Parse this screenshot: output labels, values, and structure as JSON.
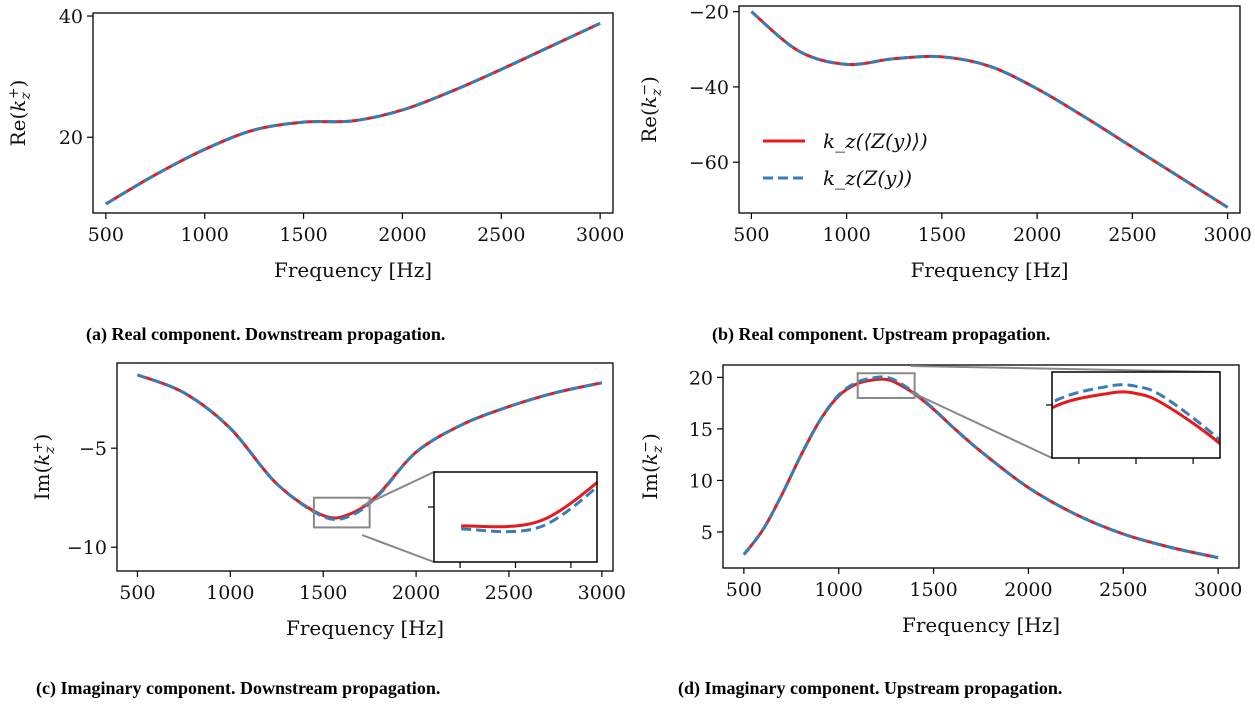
{
  "chart_data": [
    {
      "id": "a",
      "type": "line",
      "caption": "(a) Real component. Downstream propagation.",
      "xlabel": "Frequency [Hz]",
      "ylabel": "Re(kₓ⁺)",
      "ylabel_base": "Re(",
      "ylabel_sym": "k",
      "ylabel_sub": "z",
      "ylabel_sup": "+",
      "ylabel_end": ")",
      "xlim": [
        435,
        3065
      ],
      "ylim": [
        7.5,
        40.5
      ],
      "xticks": [
        500,
        1000,
        1500,
        2000,
        2500,
        3000
      ],
      "xtick_labels": [
        "500",
        "1000",
        "1500",
        "2000",
        "2500",
        "3000"
      ],
      "yticks": [
        20,
        40
      ],
      "ytick_labels": [
        "20",
        "40"
      ],
      "x": [
        500,
        750,
        1000,
        1250,
        1500,
        1750,
        2000,
        2250,
        2500,
        2750,
        3000
      ],
      "series": [
        {
          "name": "k_z(⟨Z(y)⟩)",
          "color": "#e41a1c",
          "style": "solid",
          "values": [
            9,
            13.8,
            18,
            21.2,
            22.5,
            22.7,
            24.5,
            27.6,
            31.2,
            35,
            38.8
          ]
        },
        {
          "name": "k_z(Z(y))",
          "color": "#377eb8",
          "style": "dashed",
          "values": [
            9,
            13.8,
            18,
            21.2,
            22.5,
            22.7,
            24.5,
            27.6,
            31.2,
            35,
            38.8
          ]
        }
      ],
      "legend": false,
      "inset": null
    },
    {
      "id": "b",
      "type": "line",
      "caption": "(b) Real component. Upstream propagation.",
      "xlabel": "Frequency [Hz]",
      "ylabel_base": "Re(",
      "ylabel_sym": "k",
      "ylabel_sub": "z",
      "ylabel_sup": "−",
      "ylabel_end": ")",
      "xlim": [
        435,
        3065
      ],
      "ylim": [
        -73.5,
        -18.5
      ],
      "xticks": [
        500,
        1000,
        1500,
        2000,
        2500,
        3000
      ],
      "xtick_labels": [
        "500",
        "1000",
        "1500",
        "2000",
        "2500",
        "3000"
      ],
      "yticks": [
        -20,
        -40,
        -60
      ],
      "ytick_labels": [
        "−20",
        "−40",
        "−60"
      ],
      "x": [
        500,
        750,
        1000,
        1250,
        1500,
        1750,
        2000,
        2250,
        2500,
        2750,
        3000
      ],
      "series": [
        {
          "name": "k_z(⟨Z(y)⟩)",
          "color": "#e41a1c",
          "style": "solid",
          "values": [
            -20,
            -30.5,
            -34,
            -32.5,
            -32,
            -34.5,
            -40.5,
            -48,
            -56,
            -64,
            -72
          ]
        },
        {
          "name": "k_z(Z(y))",
          "color": "#377eb8",
          "style": "dashed",
          "values": [
            -20,
            -30.5,
            -34,
            -32.5,
            -32,
            -34.5,
            -40.5,
            -48,
            -56,
            -64,
            -72
          ]
        }
      ],
      "legend": true,
      "legend_position": "center-left",
      "legend_entries": [
        "k_z(⟨Z(y)⟩)",
        "k_z(Z(y))"
      ],
      "inset": null
    },
    {
      "id": "c",
      "type": "line",
      "caption": "(c) Imaginary component. Downstream propagation.",
      "xlabel": "Frequency [Hz]",
      "ylabel_base": "Im(",
      "ylabel_sym": "k",
      "ylabel_sub": "z",
      "ylabel_sup": "+",
      "ylabel_end": ")",
      "xlim": [
        390,
        3060
      ],
      "ylim": [
        -11.2,
        -0.7
      ],
      "xticks": [
        500,
        1000,
        1500,
        2000,
        2500,
        3000
      ],
      "xtick_labels": [
        "500",
        "1000",
        "1500",
        "2000",
        "2500",
        "3000"
      ],
      "yticks": [
        -5,
        -10
      ],
      "ytick_labels": [
        "−5",
        "−10"
      ],
      "x": [
        500,
        750,
        1000,
        1250,
        1500,
        1650,
        1800,
        2000,
        2250,
        2500,
        2750,
        3000
      ],
      "series": [
        {
          "name": "k_z(⟨Z(y)⟩)",
          "color": "#e41a1c",
          "style": "solid",
          "values": [
            -1.3,
            -2.2,
            -4,
            -6.8,
            -8.4,
            -8.3,
            -7.3,
            -5.2,
            -3.8,
            -2.9,
            -2.2,
            -1.7
          ]
        },
        {
          "name": "k_z(Z(y))",
          "color": "#377eb8",
          "style": "dashed",
          "values": [
            -1.3,
            -2.2,
            -4,
            -6.8,
            -8.45,
            -8.4,
            -7.35,
            -5.2,
            -3.8,
            -2.9,
            -2.2,
            -1.7
          ]
        }
      ],
      "legend": false,
      "inset": {
        "x_range": [
          1450,
          1750
        ],
        "y_range": [
          -9.0,
          -7.5
        ],
        "position": "lower-right"
      }
    },
    {
      "id": "d",
      "type": "line",
      "caption": "(d) Imaginary component. Upstream propagation.",
      "xlabel": "Frequency [Hz]",
      "ylabel_base": "Im(",
      "ylabel_sym": "k",
      "ylabel_sub": "z",
      "ylabel_sup": "−",
      "ylabel_end": ")",
      "xlim": [
        390,
        3110
      ],
      "ylim": [
        1.5,
        21.2
      ],
      "xticks": [
        500,
        1000,
        1500,
        2000,
        2500,
        3000
      ],
      "xtick_labels": [
        "500",
        "1000",
        "1500",
        "2000",
        "2500",
        "3000"
      ],
      "yticks": [
        5,
        10,
        15,
        20
      ],
      "ytick_labels": [
        "5",
        "10",
        "15",
        "20"
      ],
      "x": [
        500,
        600,
        700,
        800,
        900,
        1000,
        1100,
        1200,
        1250,
        1300,
        1400,
        1500,
        1600,
        1750,
        2000,
        2250,
        2500,
        2750,
        3000
      ],
      "series": [
        {
          "name": "k_z(⟨Z(y)⟩)",
          "color": "#e41a1c",
          "style": "solid",
          "values": [
            2.8,
            5.2,
            8.6,
            12.4,
            15.8,
            18.2,
            19.4,
            19.8,
            19.8,
            19.5,
            18.4,
            16.9,
            15.2,
            12.8,
            9.3,
            6.7,
            4.8,
            3.5,
            2.5
          ]
        },
        {
          "name": "k_z(Z(y))",
          "color": "#377eb8",
          "style": "dashed",
          "values": [
            2.8,
            5.2,
            8.6,
            12.4,
            15.8,
            18.3,
            19.55,
            20.0,
            20.0,
            19.7,
            18.5,
            16.95,
            15.2,
            12.8,
            9.3,
            6.7,
            4.8,
            3.5,
            2.5
          ]
        }
      ],
      "legend": false,
      "inset": {
        "x_range": [
          1100,
          1400
        ],
        "y_range": [
          18.0,
          20.4
        ],
        "position": "upper-right"
      }
    }
  ]
}
